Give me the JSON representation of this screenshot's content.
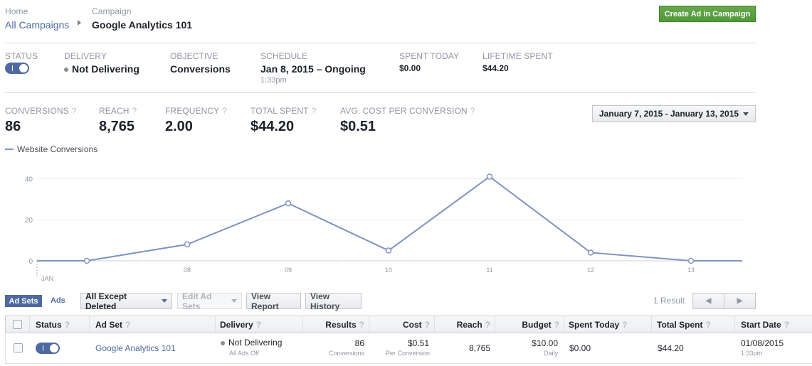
{
  "breadcrumb": {
    "home_label": "Home",
    "all_campaigns": "All Campaigns",
    "campaign_label": "Campaign",
    "campaign_name": "Google Analytics 101"
  },
  "create_button": "Create Ad in Campaign",
  "summary": {
    "status_label": "STATUS",
    "delivery_label": "DELIVERY",
    "delivery_value": "Not Delivering",
    "objective_label": "OBJECTIVE",
    "objective_value": "Conversions",
    "schedule_label": "SCHEDULE",
    "schedule_value": "Jan 8, 2015 – Ongoing",
    "schedule_time": "1:33pm",
    "spent_today_label": "SPENT TODAY",
    "spent_today_value": "$0.00",
    "lifetime_label": "LIFETIME SPENT",
    "lifetime_value": "$44.20"
  },
  "metrics": {
    "conversions_label": "CONVERSIONS",
    "conversions_value": "86",
    "reach_label": "REACH",
    "reach_value": "8,765",
    "frequency_label": "FREQUENCY",
    "frequency_value": "2.00",
    "total_spent_label": "TOTAL SPENT",
    "total_spent_value": "$44.20",
    "avg_cost_label": "AVG. COST PER CONVERSION",
    "avg_cost_value": "$0.51",
    "help": "?"
  },
  "date_range": "January 7, 2015 - January 13, 2015",
  "chart_data": {
    "type": "line",
    "legend": "Website Conversions",
    "x": [
      "JAN",
      "08",
      "09",
      "10",
      "11",
      "12",
      "13"
    ],
    "x_first_sub": "JAN",
    "y_ticks": [
      "40",
      "20",
      "0"
    ],
    "ylim": [
      0,
      45
    ],
    "series": [
      {
        "name": "Website Conversions",
        "values": [
          0,
          8,
          28,
          5,
          41,
          4,
          0
        ]
      }
    ],
    "color": "#7f93c0"
  },
  "toolbar": {
    "ad_sets_tab": "Ad Sets",
    "ads_tab": "Ads",
    "filter": "All Except Deleted",
    "edit_ad_sets": "Edit Ad Sets",
    "view_report": "View Report",
    "view_history": "View History",
    "results": "1 Result",
    "prev": "◀",
    "next": "▶"
  },
  "table": {
    "headers": {
      "status": "Status",
      "ad_set": "Ad Set",
      "delivery": "Delivery",
      "results": "Results",
      "cost": "Cost",
      "reach": "Reach",
      "budget": "Budget",
      "spent_today": "Spent Today",
      "total_spent": "Total Spent",
      "start_date": "Start Date"
    },
    "row": {
      "ad_set": "Google Analytics 101",
      "delivery": "Not Delivering",
      "delivery_sub": "All Ads Off",
      "results": "86",
      "results_sub": "Conversions",
      "cost": "$0.51",
      "cost_sub": "Per Conversion",
      "reach": "8,765",
      "budget": "$10.00",
      "budget_sub": "Daily",
      "spent_today": "$0.00",
      "total_spent": "$44.20",
      "start_date": "01/08/2015",
      "start_time": "1:33pm"
    }
  }
}
